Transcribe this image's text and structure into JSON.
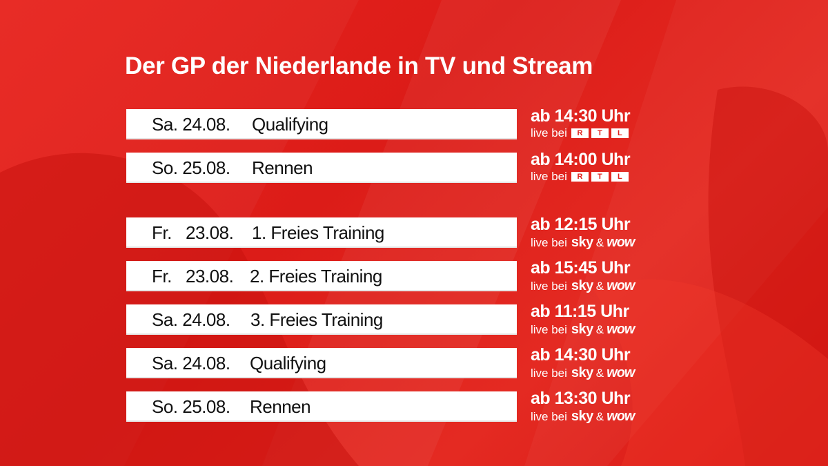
{
  "title": "Der GP der Niederlande in TV und Stream",
  "colors": {
    "background": "#e0201a",
    "bar": "#ffffff",
    "text": "#111111"
  },
  "rtl_logo_letters": [
    "R",
    "T",
    "L"
  ],
  "schedule": [
    {
      "day": "Sa.",
      "date": "24.08.",
      "event": "Qualifying",
      "time": "ab 14:30 Uhr",
      "live": "live bei",
      "broadcaster": "RTL"
    },
    {
      "day": "So.",
      "date": "25.08.",
      "event": "Rennen",
      "time": "ab 14:00 Uhr",
      "live": "live bei",
      "broadcaster": "RTL"
    },
    {
      "day": "Fr.",
      "date": "23.08.",
      "event": "1. Freies Training",
      "time": "ab 12:15 Uhr",
      "live": "live bei",
      "sky": "sky",
      "amp": "&",
      "wow": "wow"
    },
    {
      "day": "Fr.",
      "date": "23.08.",
      "event": "2. Freies Training",
      "time": "ab 15:45 Uhr",
      "live": "live bei",
      "sky": "sky",
      "amp": "&",
      "wow": "wow"
    },
    {
      "day": "Sa.",
      "date": "24.08.",
      "event": "3. Freies Training",
      "time": "ab 11:15 Uhr",
      "live": "live bei",
      "sky": "sky",
      "amp": "&",
      "wow": "wow"
    },
    {
      "day": "Sa.",
      "date": "24.08.",
      "event": "Qualifying",
      "time": "ab 14:30 Uhr",
      "live": "live bei",
      "sky": "sky",
      "amp": "&",
      "wow": "wow"
    },
    {
      "day": "So.",
      "date": "25.08.",
      "event": "Rennen",
      "time": "ab 13:30 Uhr",
      "live": "live bei",
      "sky": "sky",
      "amp": "&",
      "wow": "wow"
    }
  ]
}
